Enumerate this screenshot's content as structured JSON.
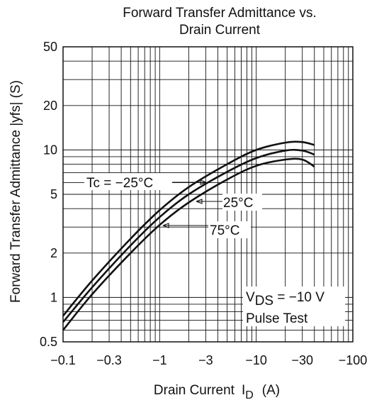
{
  "chart_data": {
    "type": "line",
    "title_line1": "Forward Transfer Admittance vs.",
    "title_line2": "Drain Current",
    "xlabel_main": "Drain Current",
    "xlabel_symbol": "I",
    "xlabel_sub": "D",
    "xlabel_unit": "(A)",
    "ylabel": "Forward Transfer Admittance  |yfs|  (S)",
    "x_scale": "log",
    "y_scale": "log",
    "x_axis_direction": "negative currents, magnitude increases to the right",
    "xlim": [
      -0.1,
      -100
    ],
    "ylim": [
      0.5,
      50
    ],
    "grid": true,
    "x_tick_values": [
      -0.1,
      -0.3,
      -1,
      -3,
      -10,
      -30,
      -100
    ],
    "x_tick_labels": [
      "−0.1",
      "−0.3",
      "−1",
      "−3",
      "−10",
      "−30",
      "−100"
    ],
    "y_tick_values": [
      0.5,
      1,
      2,
      5,
      10,
      20,
      50
    ],
    "y_tick_labels": [
      "0.5",
      "1",
      "2",
      "5",
      "10",
      "20",
      "50"
    ],
    "series": [
      {
        "name": "Tc = −25°C",
        "x": [
          -0.1,
          -0.2,
          -0.5,
          -1,
          -2,
          -5,
          -10,
          -20,
          -30,
          -40
        ],
        "y": [
          0.75,
          1.3,
          2.5,
          3.9,
          5.6,
          8.0,
          10.0,
          11.2,
          11.3,
          10.8
        ]
      },
      {
        "name": "25°C",
        "x": [
          -0.1,
          -0.2,
          -0.5,
          -1,
          -2,
          -5,
          -10,
          -20,
          -30,
          -40
        ],
        "y": [
          0.68,
          1.17,
          2.25,
          3.5,
          5.0,
          7.1,
          8.8,
          9.9,
          9.9,
          9.3
        ]
      },
      {
        "name": "75°C",
        "x": [
          -0.1,
          -0.2,
          -0.5,
          -1,
          -2,
          -5,
          -10,
          -20,
          -30,
          -40
        ],
        "y": [
          0.6,
          1.05,
          2.0,
          3.1,
          4.4,
          6.3,
          7.8,
          8.6,
          8.6,
          7.7
        ]
      }
    ],
    "annotations": {
      "condition_v": "V",
      "condition_sub": "DS",
      "condition_rest": " = −10 V",
      "pulse": "Pulse Test"
    }
  }
}
